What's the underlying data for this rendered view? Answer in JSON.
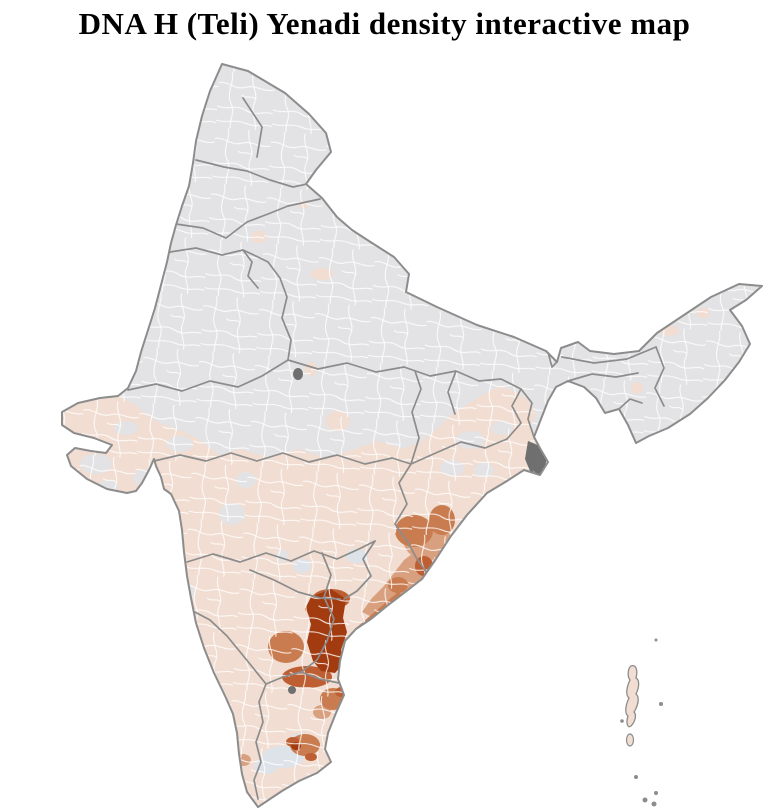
{
  "title": "DNA H (Teli) Yenadi density interactive map",
  "map": {
    "name": "India district-level choropleth map",
    "type": "choropleth",
    "colors": {
      "background": "#ffffff",
      "base": "#e3e3e5",
      "pink": "#f1ddd1",
      "bluegray": "#dde3e9",
      "orange_light": "#d9a07f",
      "orange_medium": "#c97c50",
      "orange_deep": "#bd5f33",
      "red_dark": "#a33b11",
      "dark_gray": "#6f6f6f",
      "border_state": "#8c8c8c",
      "border_district": "#ffffff",
      "outline": "#8c8c8c"
    },
    "density_tiers": [
      {
        "tier": 0,
        "color": "#e3e3e5"
      },
      {
        "tier": 1,
        "color": "#f1ddd1"
      },
      {
        "tier": 2,
        "color": "#d9a07f"
      },
      {
        "tier": 3,
        "color": "#c97c50"
      },
      {
        "tier": 4,
        "color": "#bd5f33"
      },
      {
        "tier": 5,
        "color": "#a33b11"
      }
    ],
    "regions": [
      {
        "id": "north-and-central-india",
        "tier": 0
      },
      {
        "id": "peninsular-india",
        "tier": 1
      },
      {
        "id": "gujarat-kutch",
        "tier": 1
      },
      {
        "id": "andaman-nicobar-islands",
        "tier": 1
      },
      {
        "id": "coastal-godavari-strip",
        "tier": 2
      },
      {
        "id": "krishna-guntur-band",
        "tier": 3
      },
      {
        "id": "south-odisha-cluster",
        "tier": 3
      },
      {
        "id": "kadapa-district",
        "tier": 3
      },
      {
        "id": "chennai-cluster",
        "tier": 3
      },
      {
        "id": "salem-cluster",
        "tier": 3
      },
      {
        "id": "guntur-belt",
        "tier": 4
      },
      {
        "id": "chittoor-belt",
        "tier": 4
      },
      {
        "id": "nellore-hotspot",
        "tier": 5
      },
      {
        "id": "sundarbans-delta",
        "tier": "dark_gray"
      }
    ]
  }
}
